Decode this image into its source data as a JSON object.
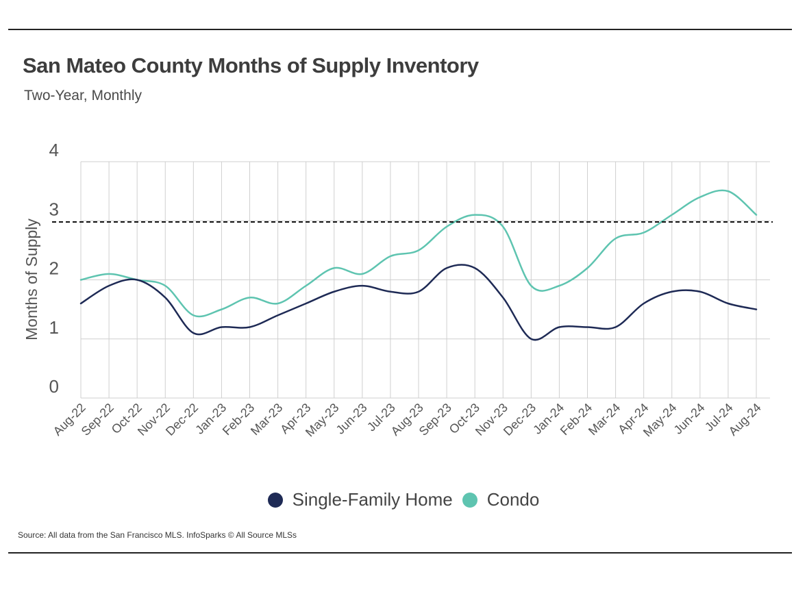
{
  "header": {
    "title": "San Mateo County Months of Supply Inventory",
    "subtitle": "Two-Year, Monthly"
  },
  "footer": {
    "source": "Source:  All data from the San Francisco MLS. InfoSparks © All Source MLSs"
  },
  "colors": {
    "single_family": "#1e2a55",
    "condo": "#5ec4b0",
    "grid": "#cfcfcf",
    "reference": "#111111",
    "text": "#444444"
  },
  "chart_data": {
    "type": "line",
    "title": "San Mateo County Months of Supply Inventory",
    "subtitle": "Two-Year, Monthly",
    "xlabel": "",
    "ylabel": "Months of Supply",
    "ylim": [
      0,
      4
    ],
    "yticks": [
      "0",
      "1",
      "2",
      "3",
      "4"
    ],
    "grid": true,
    "legend_position": "bottom-center",
    "reference_line": {
      "value": 2.98,
      "style": "dashed"
    },
    "categories": [
      "Aug-22",
      "Sep-22",
      "Oct-22",
      "Nov-22",
      "Dec-22",
      "Jan-23",
      "Feb-23",
      "Mar-23",
      "Apr-23",
      "May-23",
      "Jun-23",
      "Jul-23",
      "Aug-23",
      "Sep-23",
      "Oct-23",
      "Nov-23",
      "Dec-23",
      "Jan-24",
      "Feb-24",
      "Mar-24",
      "Apr-24",
      "May-24",
      "Jun-24",
      "Jul-24",
      "Aug-24"
    ],
    "series": [
      {
        "name": "Single-Family Home",
        "values": [
          1.6,
          1.9,
          2.0,
          1.7,
          1.1,
          1.2,
          1.2,
          1.4,
          1.6,
          1.8,
          1.9,
          1.8,
          1.8,
          2.2,
          2.2,
          1.7,
          1.0,
          1.2,
          1.2,
          1.2,
          1.6,
          1.8,
          1.8,
          1.6,
          1.5
        ]
      },
      {
        "name": "Condo",
        "values": [
          2.0,
          2.1,
          2.0,
          1.9,
          1.4,
          1.5,
          1.7,
          1.6,
          1.9,
          2.2,
          2.1,
          2.4,
          2.5,
          2.9,
          3.1,
          2.9,
          1.9,
          1.9,
          2.2,
          2.7,
          2.8,
          3.1,
          3.4,
          3.5,
          3.1
        ]
      }
    ]
  }
}
